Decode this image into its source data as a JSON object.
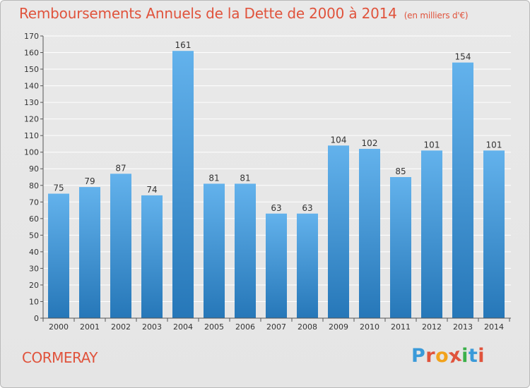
{
  "header": {
    "title": "Remboursements Annuels de la Dette de 2000 à 2014",
    "unit": "(en milliers d'€)"
  },
  "footer": {
    "commune": "CORMERAY",
    "logo_letters": [
      "P",
      "r",
      "o",
      "x",
      "i",
      "t",
      "i"
    ],
    "logo_colors": [
      "#3a9ad9",
      "#e0533c",
      "#f2a21b",
      "#e0533c",
      "#3bb04a",
      "#3a9ad9",
      "#e0533c"
    ]
  },
  "colors": {
    "bar_top": "#63b2ec",
    "bar_bottom": "#2677b8",
    "title": "#e0533c",
    "grid": "#ffffff",
    "axis": "#555555"
  },
  "chart_data": {
    "type": "bar",
    "title": "Remboursements Annuels de la Dette de 2000 à 2014",
    "xlabel": "",
    "ylabel": "",
    "categories": [
      "2000",
      "2001",
      "2002",
      "2003",
      "2004",
      "2005",
      "2006",
      "2007",
      "2008",
      "2009",
      "2010",
      "2011",
      "2012",
      "2013",
      "2014"
    ],
    "values": [
      75,
      79,
      87,
      74,
      161,
      81,
      81,
      63,
      63,
      104,
      102,
      85,
      101,
      154,
      101
    ],
    "ylim": [
      0,
      170
    ],
    "yticks": [
      0,
      10,
      20,
      30,
      40,
      50,
      60,
      70,
      80,
      90,
      100,
      110,
      120,
      130,
      140,
      150,
      160,
      170
    ],
    "grid": true
  }
}
